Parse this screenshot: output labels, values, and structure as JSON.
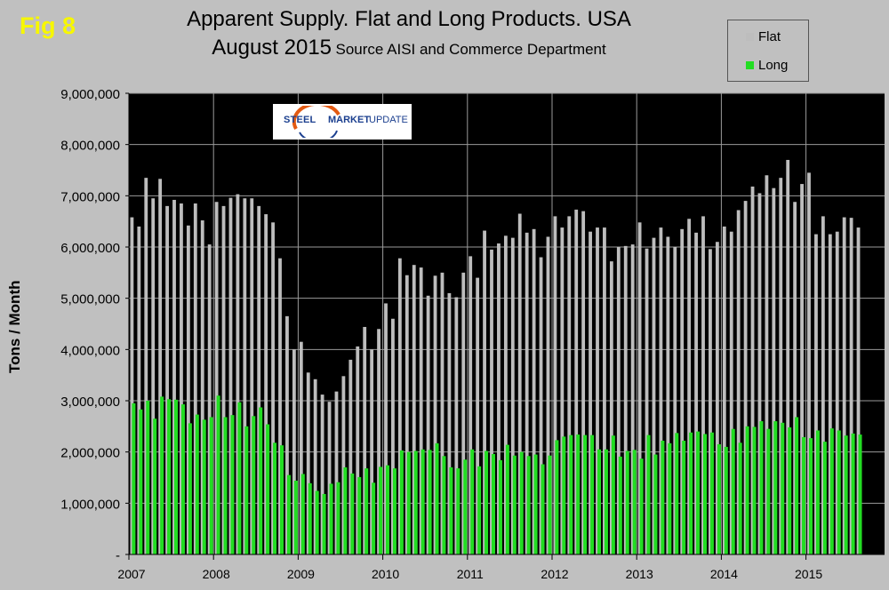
{
  "figure_label": "Fig 8",
  "title_line1": "Apparent Supply. Flat and Long Products. USA",
  "title_line2_main": "August 2015",
  "title_line2_sub": "Source AISI and Commerce Department",
  "logo": {
    "word1": "STEEL",
    "word2": "MARKET",
    "word3": "UPDATE"
  },
  "colors": {
    "flat": "#bdbdbd",
    "long": "#22dd22",
    "plot_bg": "#000000",
    "page_bg": "#c0c0c0",
    "grid": "#9a9a9a",
    "fig_label": "#f7f700"
  },
  "chart_data": {
    "type": "bar",
    "title": "Apparent Supply. Flat and Long Products. USA",
    "subtitle": "August 2015 Source AISI and Commerce Department",
    "xlabel": "",
    "ylabel": "Tons / Month",
    "ylim": [
      0,
      9000000
    ],
    "yticks": [
      0,
      1000000,
      2000000,
      3000000,
      4000000,
      5000000,
      6000000,
      7000000,
      8000000,
      9000000
    ],
    "ytick_labels": [
      "-",
      "1,000,000",
      "2,000,000",
      "3,000,000",
      "4,000,000",
      "5,000,000",
      "6,000,000",
      "7,000,000",
      "8,000,000",
      "9,000,000"
    ],
    "x_tick_labels": [
      "2007",
      "2008",
      "2009",
      "2010",
      "2011",
      "2012",
      "2013",
      "2014",
      "2015"
    ],
    "start": "2007-01",
    "end": "2015-08",
    "legend": [
      "Flat",
      "Long"
    ],
    "legend_position": "top-right",
    "grid": true,
    "series": [
      {
        "name": "Flat",
        "values": [
          6580000,
          6400000,
          7350000,
          6950000,
          7330000,
          6800000,
          6920000,
          6850000,
          6420000,
          6850000,
          6520000,
          6050000,
          6880000,
          6800000,
          6960000,
          7030000,
          6950000,
          6950000,
          6800000,
          6640000,
          6480000,
          5780000,
          4650000,
          4000000,
          4150000,
          3550000,
          3420000,
          3120000,
          2980000,
          3180000,
          3480000,
          3800000,
          4060000,
          4440000,
          4000000,
          4400000,
          4900000,
          4600000,
          5780000,
          5450000,
          5650000,
          5600000,
          5050000,
          5440000,
          5500000,
          5100000,
          5020000,
          5500000,
          5820000,
          5400000,
          6320000,
          5950000,
          6070000,
          6220000,
          6180000,
          6650000,
          6280000,
          6350000,
          5800000,
          6200000,
          6600000,
          6380000,
          6600000,
          6730000,
          6700000,
          6300000,
          6380000,
          6380000,
          5720000,
          6000000,
          6020000,
          6050000,
          6480000,
          5970000,
          6180000,
          6380000,
          6200000,
          6000000,
          6350000,
          6550000,
          6280000,
          6600000,
          5960000,
          6100000,
          6400000,
          6300000,
          6720000,
          6900000,
          7180000,
          7050000,
          7400000,
          7150000,
          7350000,
          7700000,
          6880000,
          7230000,
          7450000,
          6250000,
          6600000,
          6250000,
          6300000,
          6580000,
          6570000,
          6380000
        ]
      },
      {
        "name": "Long",
        "values": [
          2950000,
          2830000,
          3000000,
          2650000,
          3080000,
          3030000,
          3020000,
          2930000,
          2560000,
          2730000,
          2630000,
          2680000,
          3100000,
          2680000,
          2720000,
          2970000,
          2500000,
          2700000,
          2870000,
          2540000,
          2180000,
          2130000,
          1550000,
          1440000,
          1570000,
          1390000,
          1240000,
          1180000,
          1380000,
          1410000,
          1700000,
          1580000,
          1510000,
          1680000,
          1400000,
          1710000,
          1740000,
          1680000,
          2030000,
          2000000,
          2020000,
          2050000,
          2040000,
          2170000,
          1920000,
          1700000,
          1680000,
          1850000,
          2050000,
          1720000,
          2020000,
          1960000,
          1840000,
          2140000,
          1930000,
          2000000,
          1920000,
          1950000,
          1760000,
          1930000,
          2230000,
          2300000,
          2330000,
          2340000,
          2330000,
          2330000,
          2050000,
          2050000,
          2320000,
          1910000,
          2020000,
          2040000,
          1870000,
          2330000,
          1950000,
          2220000,
          2170000,
          2370000,
          2220000,
          2380000,
          2400000,
          2350000,
          2380000,
          2150000,
          2100000,
          2450000,
          2180000,
          2500000,
          2490000,
          2600000,
          2450000,
          2600000,
          2570000,
          2480000,
          2680000,
          2290000,
          2270000,
          2420000,
          2200000,
          2460000,
          2420000,
          2320000,
          2360000,
          2340000
        ]
      }
    ]
  }
}
